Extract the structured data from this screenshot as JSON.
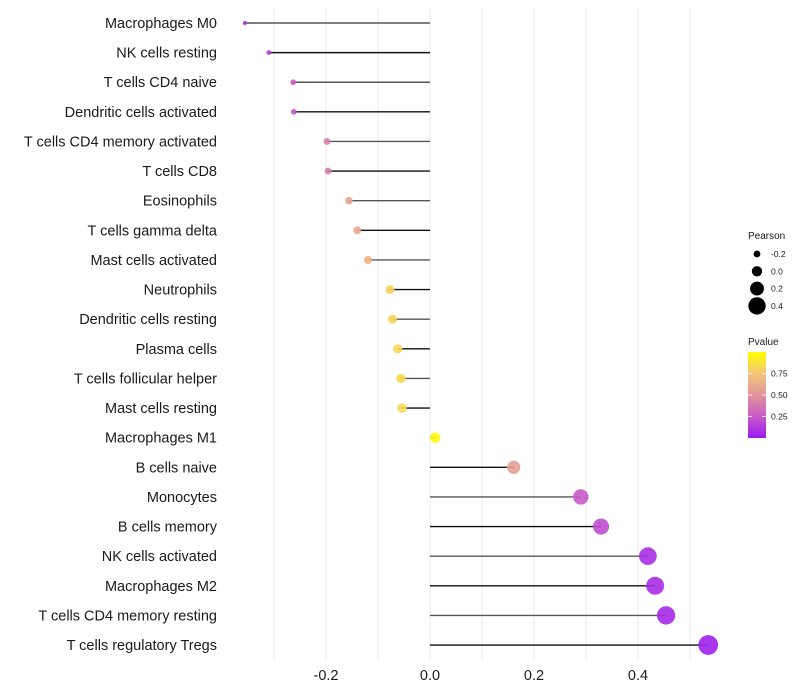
{
  "chart_data": {
    "type": "lollipop",
    "title": "",
    "xlabel": "",
    "ylabel": "",
    "xlim": [
      -0.36,
      0.545
    ],
    "x_ticks": [
      -0.2,
      0.0,
      0.2,
      0.4
    ],
    "x_tick_labels": [
      "-0.2",
      "0.0",
      "0.2",
      "0.4"
    ],
    "grid": "vertical major and minor",
    "categories": [
      "Macrophages M0",
      "NK cells resting",
      "T cells CD4 naive",
      "Dendritic cells activated",
      "T cells CD4 memory activated",
      "T cells CD8",
      "Eosinophils",
      "T cells gamma delta",
      "Mast cells activated",
      "Neutrophils",
      "Dendritic cells resting",
      "Plasma cells",
      "T cells follicular helper",
      "Mast cells resting",
      "Macrophages M1",
      "B cells naive",
      "Monocytes",
      "B cells memory",
      "NK cells activated",
      "Macrophages M2",
      "T cells CD4 memory resting",
      "T cells regulatory  Tregs"
    ],
    "series": [
      {
        "name": "Pearson",
        "values": [
          -0.356,
          -0.31,
          -0.263,
          -0.262,
          -0.198,
          -0.196,
          -0.156,
          -0.14,
          -0.119,
          -0.077,
          -0.072,
          -0.062,
          -0.056,
          -0.054,
          0.01,
          0.161,
          0.29,
          0.329,
          0.419,
          0.433,
          0.454,
          0.535
        ]
      },
      {
        "name": "Pvalue",
        "values": [
          0.06,
          0.15,
          0.25,
          0.25,
          0.4,
          0.4,
          0.58,
          0.6,
          0.66,
          0.8,
          0.82,
          0.83,
          0.84,
          0.84,
          0.97,
          0.55,
          0.25,
          0.2,
          0.08,
          0.07,
          0.06,
          0.02
        ]
      }
    ],
    "legend": {
      "position": "right",
      "size": {
        "title": "Pearson",
        "entries": [
          {
            "label": "-0.2",
            "value": -0.2
          },
          {
            "label": "0.0",
            "value": 0.0
          },
          {
            "label": "0.2",
            "value": 0.2
          },
          {
            "label": "0.4",
            "value": 0.4
          }
        ]
      },
      "color": {
        "title": "Pvalue",
        "range": [
          0.0,
          1.0
        ],
        "ticks": [
          {
            "label": "0.25",
            "value": 0.25
          },
          {
            "label": "0.50",
            "value": 0.5
          },
          {
            "label": "0.75",
            "value": 0.75
          }
        ],
        "low_color": "#9b1cf0",
        "mid_color": "#e0959a",
        "high_color": "#ffff00"
      }
    }
  }
}
